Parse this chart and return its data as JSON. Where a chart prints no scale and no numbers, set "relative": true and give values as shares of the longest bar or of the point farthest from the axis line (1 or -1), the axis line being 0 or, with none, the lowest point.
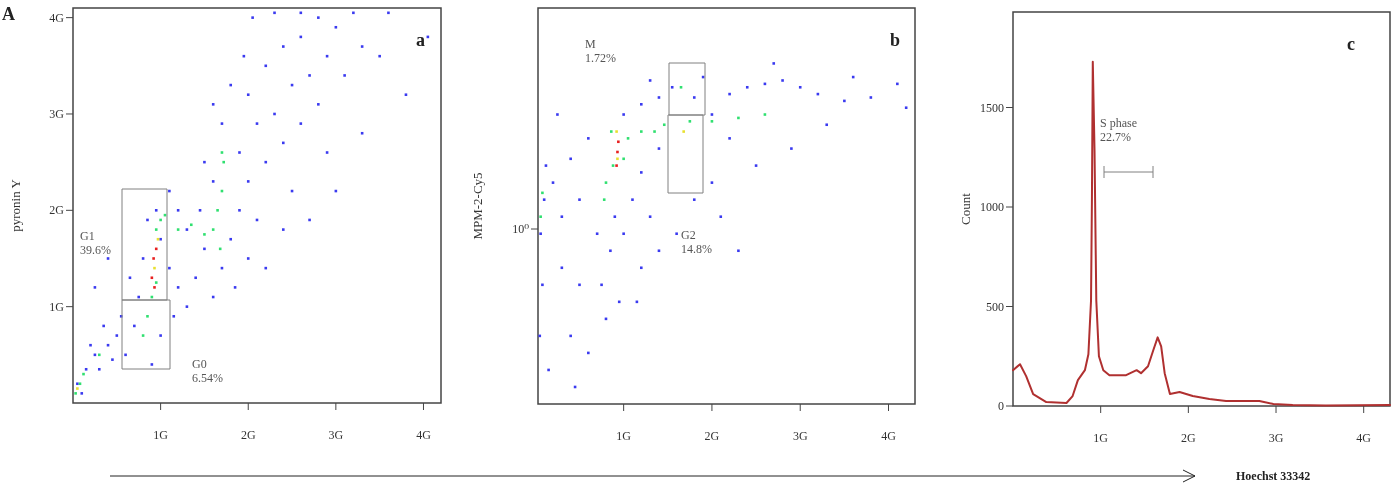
{
  "chart_data": [
    {
      "type": "scatter",
      "ylabel": "pyronin Y",
      "marker": "square",
      "xlim": [
        0,
        4.2
      ],
      "ylim": [
        0,
        4.1
      ],
      "xticks": [
        {
          "value": 1,
          "label": "1G"
        },
        {
          "value": 2,
          "label": "2G"
        },
        {
          "value": 3,
          "label": "3G"
        },
        {
          "value": 4,
          "label": "4G"
        }
      ],
      "yticks": [
        {
          "value": 1,
          "label": "1G"
        },
        {
          "value": 2,
          "label": "2G"
        },
        {
          "value": 3,
          "label": "3G"
        },
        {
          "value": 4,
          "label": "4G"
        }
      ],
      "annotations": [
        "A",
        "a",
        "G1\n39.6%",
        "G0\n6.54%"
      ],
      "series": [
        {
          "color": "#3a3af0",
          "x": [
            0.05,
            0.15,
            0.25,
            0.3,
            0.4,
            0.45,
            0.5,
            0.35,
            0.2,
            0.6,
            0.7,
            0.75,
            0.65,
            0.8,
            0.85,
            0.95,
            1.0,
            1.1,
            1.2,
            1.15,
            1.3,
            1.4,
            1.5,
            1.3,
            1.2,
            1.45,
            1.6,
            1.7,
            1.8,
            1.9,
            1.6,
            1.5,
            1.7,
            1.6,
            1.8,
            1.9,
            2.0,
            2.1,
            2.2,
            2.1,
            2.0,
            1.95,
            2.2,
            2.3,
            2.4,
            2.5,
            2.6,
            2.5,
            2.4,
            2.6,
            2.7,
            2.8,
            2.9,
            3.0,
            2.8,
            3.2,
            3.3,
            3.1,
            2.3,
            2.6,
            2.9,
            3.5,
            3.8,
            4.05,
            3.0,
            2.4,
            2.0,
            1.85,
            1.0,
            0.9,
            0.55,
            0.1,
            2.7,
            3.3,
            0.25,
            0.4,
            3.6,
            2.2,
            1.1,
            2.05
          ],
          "values": [
            0.2,
            0.35,
            0.5,
            0.35,
            0.6,
            0.45,
            0.7,
            0.8,
            0.6,
            0.5,
            0.8,
            1.1,
            1.3,
            1.5,
            1.9,
            2.0,
            1.7,
            1.4,
            1.2,
            0.9,
            1.0,
            1.3,
            1.6,
            1.8,
            2.0,
            2.0,
            1.1,
            1.4,
            1.7,
            2.0,
            2.3,
            2.5,
            2.9,
            3.1,
            3.3,
            2.6,
            2.3,
            1.9,
            2.5,
            2.9,
            3.2,
            3.6,
            3.5,
            3.0,
            2.7,
            2.2,
            2.9,
            3.3,
            3.7,
            3.8,
            3.4,
            3.1,
            3.6,
            3.9,
            4.0,
            4.05,
            3.7,
            3.4,
            4.05,
            4.05,
            2.6,
            3.6,
            3.2,
            3.8,
            2.2,
            1.8,
            1.5,
            1.2,
            0.7,
            0.4,
            0.9,
            0.1,
            1.9,
            2.8,
            1.2,
            1.5,
            4.05,
            1.4,
            2.2,
            4.0
          ]
        },
        {
          "color": "#30e070",
          "x": [
            0.03,
            0.08,
            0.12,
            0.8,
            0.85,
            0.9,
            0.95,
            1.0,
            1.05,
            1.2,
            1.35,
            1.5,
            1.6,
            1.65,
            1.7,
            1.72,
            1.7,
            1.68,
            0.3,
            0.95
          ],
          "values": [
            0.1,
            0.2,
            0.3,
            0.7,
            0.9,
            1.1,
            1.25,
            1.9,
            1.95,
            1.8,
            1.85,
            1.75,
            1.8,
            2.0,
            2.2,
            2.5,
            2.6,
            1.6,
            0.5,
            1.8
          ]
        },
        {
          "color": "#e8e030",
          "x": [
            0.93,
            0.97,
            0.05
          ],
          "values": [
            1.4,
            1.7,
            0.15
          ]
        },
        {
          "color": "#e82020",
          "x": [
            0.9,
            0.92,
            0.95,
            0.93
          ],
          "values": [
            1.3,
            1.5,
            1.6,
            1.2
          ]
        }
      ]
    },
    {
      "type": "scatter",
      "ylabel": "MPM-2-Cy5",
      "marker": "square",
      "relative": true,
      "xlim": [
        0.03,
        4.3
      ],
      "xticks": [
        {
          "value": 1,
          "label": "1G"
        },
        {
          "value": 2,
          "label": "2G"
        },
        {
          "value": 3,
          "label": "3G"
        },
        {
          "value": 4,
          "label": "4G"
        }
      ],
      "annotations": [
        "b",
        "10⁰",
        "M\n1.72%",
        "G2\n14.8%"
      ],
      "series": [
        {
          "color": "#3a3af0",
          "x": [
            0.05,
            0.08,
            0.06,
            0.1,
            0.12,
            0.2,
            0.3,
            0.4,
            0.5,
            0.6,
            0.7,
            0.75,
            0.8,
            0.85,
            0.9,
            1.0,
            1.1,
            1.2,
            1.3,
            1.4,
            1.0,
            1.2,
            1.4,
            1.55,
            1.8,
            2.0,
            2.2,
            2.4,
            2.6,
            2.8,
            3.0,
            3.2,
            3.5,
            3.8,
            4.1,
            4.2,
            3.3,
            2.9,
            2.5,
            2.2,
            2.0,
            1.8,
            1.6,
            1.4,
            1.2,
            2.1,
            0.15,
            0.4,
            0.5,
            0.3,
            0.6,
            0.95,
            1.15,
            0.25,
            1.9,
            2.7,
            3.6,
            2.3,
            0.45,
            1.3
          ],
          "values": [
            0.2,
            0.35,
            0.5,
            0.6,
            0.7,
            0.65,
            0.55,
            0.72,
            0.6,
            0.78,
            0.5,
            0.35,
            0.25,
            0.45,
            0.55,
            0.5,
            0.6,
            0.68,
            0.55,
            0.75,
            0.85,
            0.88,
            0.9,
            0.93,
            0.9,
            0.85,
            0.91,
            0.93,
            0.94,
            0.95,
            0.93,
            0.91,
            0.89,
            0.9,
            0.94,
            0.87,
            0.82,
            0.75,
            0.7,
            0.78,
            0.65,
            0.6,
            0.5,
            0.45,
            0.4,
            0.55,
            0.1,
            0.2,
            0.35,
            0.4,
            0.15,
            0.3,
            0.3,
            0.85,
            0.96,
            1,
            0.96,
            0.45,
            0.05,
            0.95
          ]
        },
        {
          "color": "#30e070",
          "x": [
            0.06,
            0.08,
            0.78,
            0.88,
            0.86,
            1.05,
            1.2,
            1.35,
            1.46,
            1.65,
            1.75,
            2.0,
            2.3,
            2.6,
            0.8,
            1.0
          ],
          "values": [
            0.55,
            0.62,
            0.6,
            0.7,
            0.8,
            0.78,
            0.8,
            0.8,
            0.82,
            0.93,
            0.83,
            0.83,
            0.84,
            0.85,
            0.65,
            0.72
          ]
        },
        {
          "color": "#e8e030",
          "x": [
            0.93,
            1.68,
            0.92
          ],
          "values": [
            0.72,
            0.8,
            0.8
          ]
        },
        {
          "color": "#e82020",
          "x": [
            0.93,
            0.94,
            0.92
          ],
          "values": [
            0.74,
            0.77,
            0.7
          ]
        }
      ]
    },
    {
      "type": "line",
      "ylabel": "Count",
      "xlabel": "Hoechst 33342",
      "xlim": [
        0,
        4.3
      ],
      "ylim": [
        0,
        1980
      ],
      "xticks": [
        {
          "value": 1,
          "label": "1G"
        },
        {
          "value": 2,
          "label": "2G"
        },
        {
          "value": 3,
          "label": "3G"
        },
        {
          "value": 4,
          "label": "4G"
        }
      ],
      "yticks": [
        0,
        500,
        1000,
        1500
      ],
      "annotations": [
        "c",
        "S phase\n22.7%"
      ],
      "series": [
        {
          "color": "#b03030",
          "x": [
            0,
            0.08,
            0.15,
            0.23,
            0.38,
            0.61,
            0.68,
            0.74,
            0.82,
            0.86,
            0.89,
            0.9,
            0.91,
            0.93,
            0.95,
            0.98,
            1.03,
            1.1,
            1.29,
            1.41,
            1.46,
            1.54,
            1.6,
            1.65,
            1.69,
            1.73,
            1.79,
            1.9,
            2.05,
            2.24,
            2.43,
            2.81,
            2.97,
            3.19,
            3.57,
            4.3
          ],
          "values": [
            180,
            210,
            150,
            60,
            20,
            15,
            50,
            130,
            180,
            260,
            530,
            1030,
            1730,
            1280,
            530,
            250,
            180,
            155,
            155,
            180,
            165,
            200,
            280,
            345,
            300,
            165,
            60,
            70,
            50,
            35,
            25,
            25,
            10,
            5,
            2,
            5
          ]
        }
      ]
    }
  ]
}
